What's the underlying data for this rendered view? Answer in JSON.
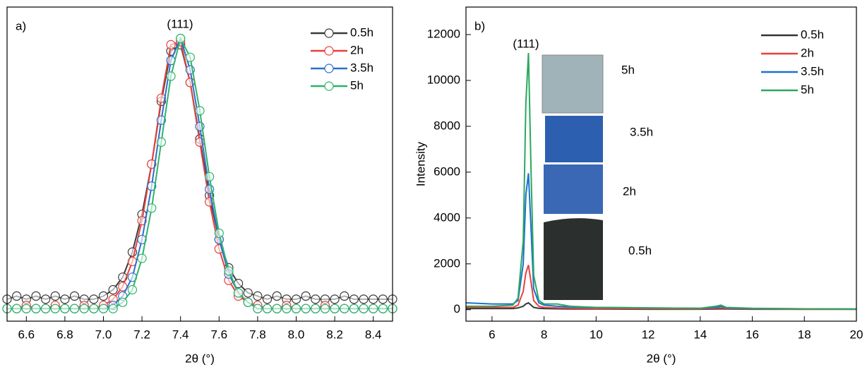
{
  "chart_data": [
    {
      "type": "scatter-line",
      "label": "a)",
      "x_label": "2θ (°)",
      "annotations": [
        {
          "text": "(111)",
          "color": "#000000"
        }
      ],
      "xlim": [
        6.5,
        8.5
      ],
      "ylim": [
        0,
        1
      ],
      "xticks": [
        6.6,
        6.8,
        {
          "value": 7,
          "label": "7.0"
        },
        7.2,
        7.4,
        7.6,
        7.8,
        {
          "value": 8,
          "label": "8.0"
        },
        8.2,
        8.4
      ],
      "legend": "upper right",
      "grid": false,
      "x": [
        6.5,
        6.55,
        6.6,
        6.65,
        6.7,
        6.75,
        6.8,
        6.85,
        6.9,
        6.95,
        7.0,
        7.05,
        7.1,
        7.15,
        7.2,
        7.25,
        7.3,
        7.35,
        7.4,
        7.45,
        7.5,
        7.55,
        7.6,
        7.65,
        7.7,
        7.75,
        7.8,
        7.85,
        7.9,
        7.95,
        8.0,
        8.05,
        8.1,
        8.15,
        8.2,
        8.25,
        8.3,
        8.35,
        8.4,
        8.45,
        8.5
      ],
      "series": [
        {
          "name": "0.5h",
          "color": "#3a3a3a",
          "values": [
            0.07,
            0.08,
            0.07,
            0.08,
            0.07,
            0.08,
            0.07,
            0.08,
            0.07,
            0.07,
            0.08,
            0.1,
            0.14,
            0.22,
            0.34,
            0.5,
            0.7,
            0.86,
            0.88,
            0.76,
            0.58,
            0.4,
            0.26,
            0.17,
            0.12,
            0.09,
            0.08,
            0.07,
            0.08,
            0.07,
            0.07,
            0.08,
            0.07,
            0.07,
            0.07,
            0.08,
            0.07,
            0.07,
            0.07,
            0.07,
            0.07
          ]
        },
        {
          "name": "2h",
          "color": "#e8413d",
          "values": [
            0.04,
            0.04,
            0.05,
            0.04,
            0.04,
            0.05,
            0.04,
            0.04,
            0.05,
            0.04,
            0.05,
            0.07,
            0.11,
            0.19,
            0.32,
            0.5,
            0.71,
            0.88,
            0.89,
            0.76,
            0.57,
            0.38,
            0.23,
            0.13,
            0.08,
            0.06,
            0.05,
            0.04,
            0.04,
            0.05,
            0.04,
            0.04,
            0.04,
            0.05,
            0.04,
            0.04,
            0.04,
            0.04,
            0.04,
            0.04,
            0.04
          ]
        },
        {
          "name": "3.5h",
          "color": "#2f6ec9",
          "values": [
            0.04,
            0.04,
            0.04,
            0.04,
            0.04,
            0.04,
            0.04,
            0.04,
            0.04,
            0.04,
            0.04,
            0.05,
            0.08,
            0.14,
            0.26,
            0.43,
            0.64,
            0.83,
            0.9,
            0.8,
            0.62,
            0.42,
            0.26,
            0.15,
            0.09,
            0.06,
            0.04,
            0.04,
            0.04,
            0.04,
            0.04,
            0.04,
            0.04,
            0.04,
            0.04,
            0.04,
            0.04,
            0.04,
            0.04,
            0.04,
            0.04
          ]
        },
        {
          "name": "5h",
          "color": "#2db36a",
          "values": [
            0.04,
            0.04,
            0.04,
            0.04,
            0.04,
            0.04,
            0.04,
            0.04,
            0.04,
            0.04,
            0.04,
            0.04,
            0.06,
            0.1,
            0.2,
            0.36,
            0.57,
            0.78,
            0.9,
            0.84,
            0.67,
            0.46,
            0.28,
            0.16,
            0.09,
            0.06,
            0.04,
            0.04,
            0.04,
            0.04,
            0.04,
            0.04,
            0.04,
            0.04,
            0.04,
            0.04,
            0.04,
            0.04,
            0.04,
            0.04,
            0.04
          ]
        }
      ]
    },
    {
      "type": "line",
      "label": "b)",
      "x_label": "2θ (°)",
      "y_label": "Intensity",
      "annotations": [
        {
          "text": "(111)",
          "color": "#000000"
        },
        {
          "text": "5h",
          "color": "#2aa860"
        },
        {
          "text": "3.5h",
          "color": "#1f3f8f"
        },
        {
          "text": "2h",
          "color": "#e8413d"
        },
        {
          "text": "0.5h",
          "color": "#000000"
        }
      ],
      "xlim": [
        5,
        20
      ],
      "ylim": [
        -500,
        13200
      ],
      "xticks": [
        6,
        8,
        10,
        12,
        14,
        16,
        18,
        20
      ],
      "yticks": [
        0,
        2000,
        4000,
        6000,
        8000,
        10000,
        12000
      ],
      "legend": "upper right",
      "grid": false,
      "x": [
        5,
        6,
        6.8,
        7.0,
        7.2,
        7.3,
        7.4,
        7.5,
        7.6,
        7.8,
        8.0,
        8.5,
        9,
        10,
        12,
        14,
        14.6,
        14.8,
        15,
        16,
        18,
        20
      ],
      "series": [
        {
          "name": "0.5h",
          "color": "#333333",
          "values": [
            50,
            50,
            50,
            80,
            150,
            250,
            300,
            200,
            100,
            60,
            50,
            40,
            30,
            30,
            20,
            20,
            30,
            40,
            30,
            20,
            20,
            20
          ]
        },
        {
          "name": "2h",
          "color": "#e8413d",
          "values": [
            100,
            100,
            100,
            200,
            800,
            1600,
            1950,
            1200,
            400,
            150,
            100,
            80,
            60,
            50,
            40,
            30,
            60,
            80,
            50,
            30,
            20,
            20
          ]
        },
        {
          "name": "3.5h",
          "color": "#1f6fd1",
          "values": [
            300,
            250,
            250,
            400,
            2000,
            5000,
            5950,
            3500,
            900,
            300,
            200,
            150,
            120,
            100,
            80,
            60,
            100,
            150,
            80,
            50,
            40,
            30
          ]
        },
        {
          "name": "5h",
          "color": "#2aa860",
          "values": [
            150,
            150,
            200,
            500,
            3000,
            9000,
            11200,
            6000,
            1500,
            400,
            250,
            250,
            150,
            100,
            80,
            60,
            150,
            200,
            100,
            60,
            40,
            30
          ]
        }
      ]
    }
  ]
}
